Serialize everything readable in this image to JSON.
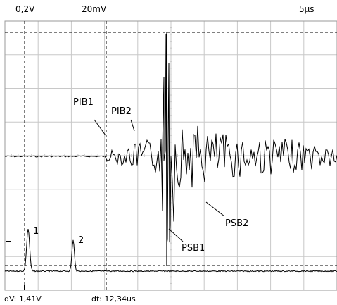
{
  "header": {
    "ch1_scale": "0,2V",
    "ch2_scale": "20mV",
    "time_scale": "5µs"
  },
  "footer": {
    "dv_readout": "dV: 1,41V",
    "dt_readout": "dt: 12,34us"
  },
  "annotations": {
    "pib1": "PIB1",
    "pib2": "PIB2",
    "psb1": "PSB1",
    "psb2": "PSB2",
    "pulse1": "1",
    "pulse2": "2"
  },
  "colors": {
    "background": "#ffffff",
    "grid": "#c8c8c8",
    "trace": "#000000",
    "cursor": "#000000"
  }
}
